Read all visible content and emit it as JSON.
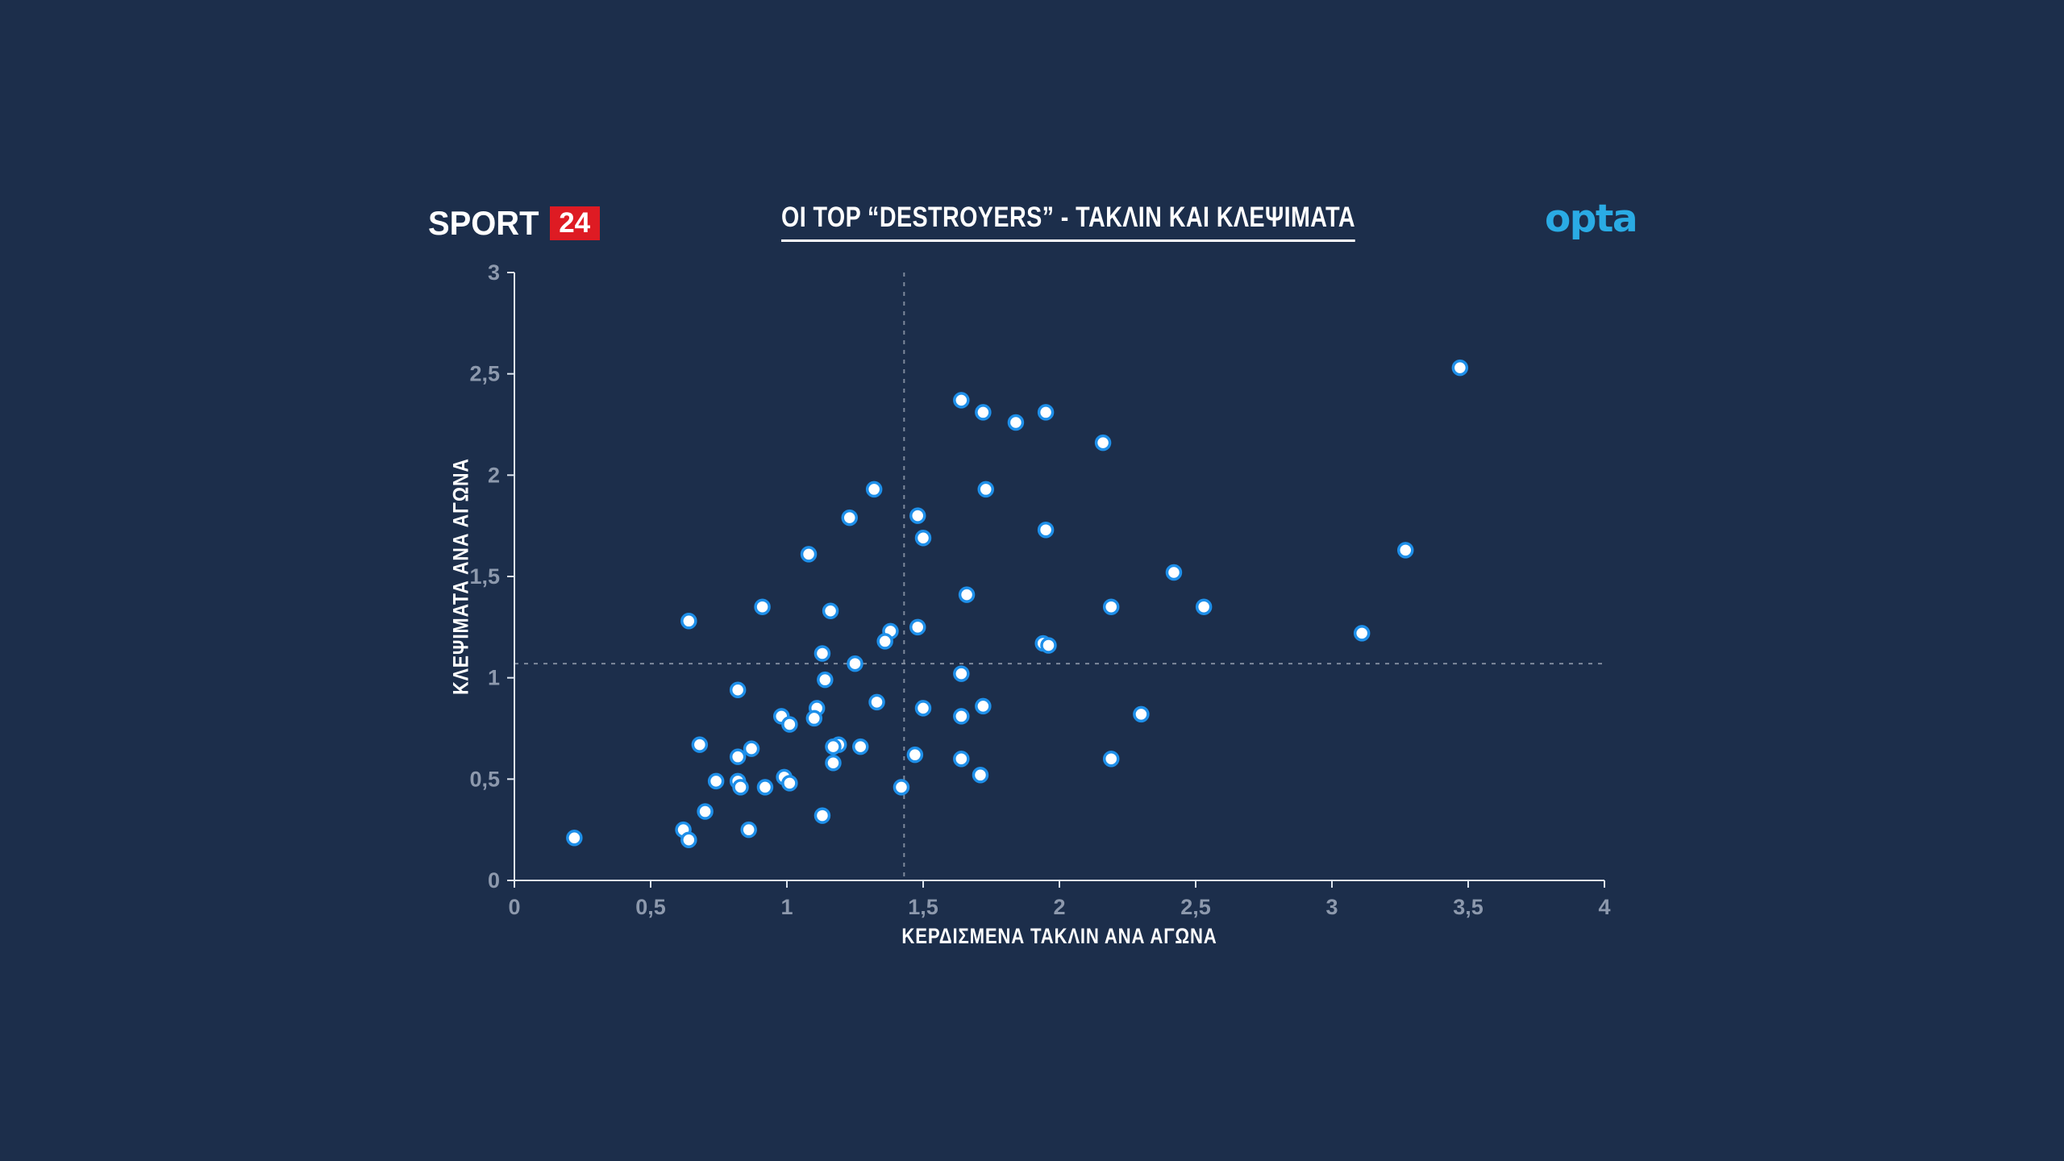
{
  "header": {
    "brand": {
      "sport": "SPORT",
      "badge": "24"
    },
    "title": "ΟΙ TOP “DESTROYERS” - ΤΑΚΛΙΝ ΚΑΙ ΚΛΕΨΙΜΑΤΑ",
    "provider": "opta"
  },
  "colors": {
    "background": "#1c2e4b",
    "brand_red": "#de1b23",
    "opta_blue": "#2aabe4",
    "point_fill": "#ffffff",
    "point_stroke": "#1e8fe9",
    "axis": "#dde5ee",
    "tick_text": "#8d99ad",
    "ref_line": "#8e99ab"
  },
  "chart_data": {
    "type": "scatter",
    "title": "ΟΙ TOP “DESTROYERS” - ΤΑΚΛΙΝ ΚΑΙ ΚΛΕΨΙΜΑΤΑ",
    "xlabel": "ΚΕΡΔΙΣΜΕΝΑ ΤΑΚΛΙΝ ΑΝΑ ΑΓΩΝΑ",
    "ylabel": "ΚΛΕΨΙΜΑΤΑ ΑΝΑ ΑΓΩΝΑ",
    "xlim": [
      0,
      4
    ],
    "ylim": [
      0,
      3
    ],
    "grid": false,
    "x_ticks": [
      0,
      0.5,
      1,
      1.5,
      2,
      2.5,
      3,
      3.5,
      4
    ],
    "x_tick_labels": [
      "0",
      "0,5",
      "1",
      "1,5",
      "2",
      "2,5",
      "3",
      "3,5",
      "4"
    ],
    "y_ticks": [
      0,
      0.5,
      1,
      1.5,
      2,
      2.5,
      3
    ],
    "y_tick_labels": [
      "0",
      "0,5",
      "1",
      "1,5",
      "2",
      "2,5",
      "3"
    ],
    "reference_lines": {
      "x": 1.43,
      "y": 1.07
    },
    "points": [
      [
        3.47,
        2.53
      ],
      [
        1.64,
        2.37
      ],
      [
        1.72,
        2.31
      ],
      [
        1.84,
        2.26
      ],
      [
        1.95,
        2.31
      ],
      [
        2.16,
        2.16
      ],
      [
        1.32,
        1.93
      ],
      [
        1.73,
        1.93
      ],
      [
        1.23,
        1.79
      ],
      [
        1.48,
        1.8
      ],
      [
        1.5,
        1.69
      ],
      [
        1.95,
        1.73
      ],
      [
        1.08,
        1.61
      ],
      [
        3.27,
        1.63
      ],
      [
        2.42,
        1.52
      ],
      [
        1.66,
        1.41
      ],
      [
        0.91,
        1.35
      ],
      [
        1.16,
        1.33
      ],
      [
        2.19,
        1.35
      ],
      [
        2.53,
        1.35
      ],
      [
        0.64,
        1.28
      ],
      [
        1.48,
        1.25
      ],
      [
        1.38,
        1.23
      ],
      [
        3.11,
        1.22
      ],
      [
        1.36,
        1.18
      ],
      [
        1.94,
        1.17
      ],
      [
        1.96,
        1.16
      ],
      [
        1.13,
        1.12
      ],
      [
        1.25,
        1.07
      ],
      [
        1.64,
        1.02
      ],
      [
        1.14,
        0.99
      ],
      [
        0.82,
        0.94
      ],
      [
        1.33,
        0.88
      ],
      [
        1.5,
        0.85
      ],
      [
        1.72,
        0.86
      ],
      [
        1.11,
        0.85
      ],
      [
        0.98,
        0.81
      ],
      [
        1.64,
        0.81
      ],
      [
        2.3,
        0.82
      ],
      [
        1.1,
        0.8
      ],
      [
        1.01,
        0.77
      ],
      [
        0.68,
        0.67
      ],
      [
        1.19,
        0.67
      ],
      [
        1.17,
        0.66
      ],
      [
        1.27,
        0.66
      ],
      [
        0.87,
        0.65
      ],
      [
        1.47,
        0.62
      ],
      [
        0.82,
        0.61
      ],
      [
        1.64,
        0.6
      ],
      [
        2.19,
        0.6
      ],
      [
        1.17,
        0.58
      ],
      [
        1.71,
        0.52
      ],
      [
        0.99,
        0.51
      ],
      [
        0.74,
        0.49
      ],
      [
        0.82,
        0.49
      ],
      [
        1.01,
        0.48
      ],
      [
        0.83,
        0.46
      ],
      [
        0.92,
        0.46
      ],
      [
        1.42,
        0.46
      ],
      [
        0.7,
        0.34
      ],
      [
        1.13,
        0.32
      ],
      [
        0.62,
        0.25
      ],
      [
        0.86,
        0.25
      ],
      [
        0.64,
        0.2
      ],
      [
        0.22,
        0.21
      ]
    ]
  }
}
